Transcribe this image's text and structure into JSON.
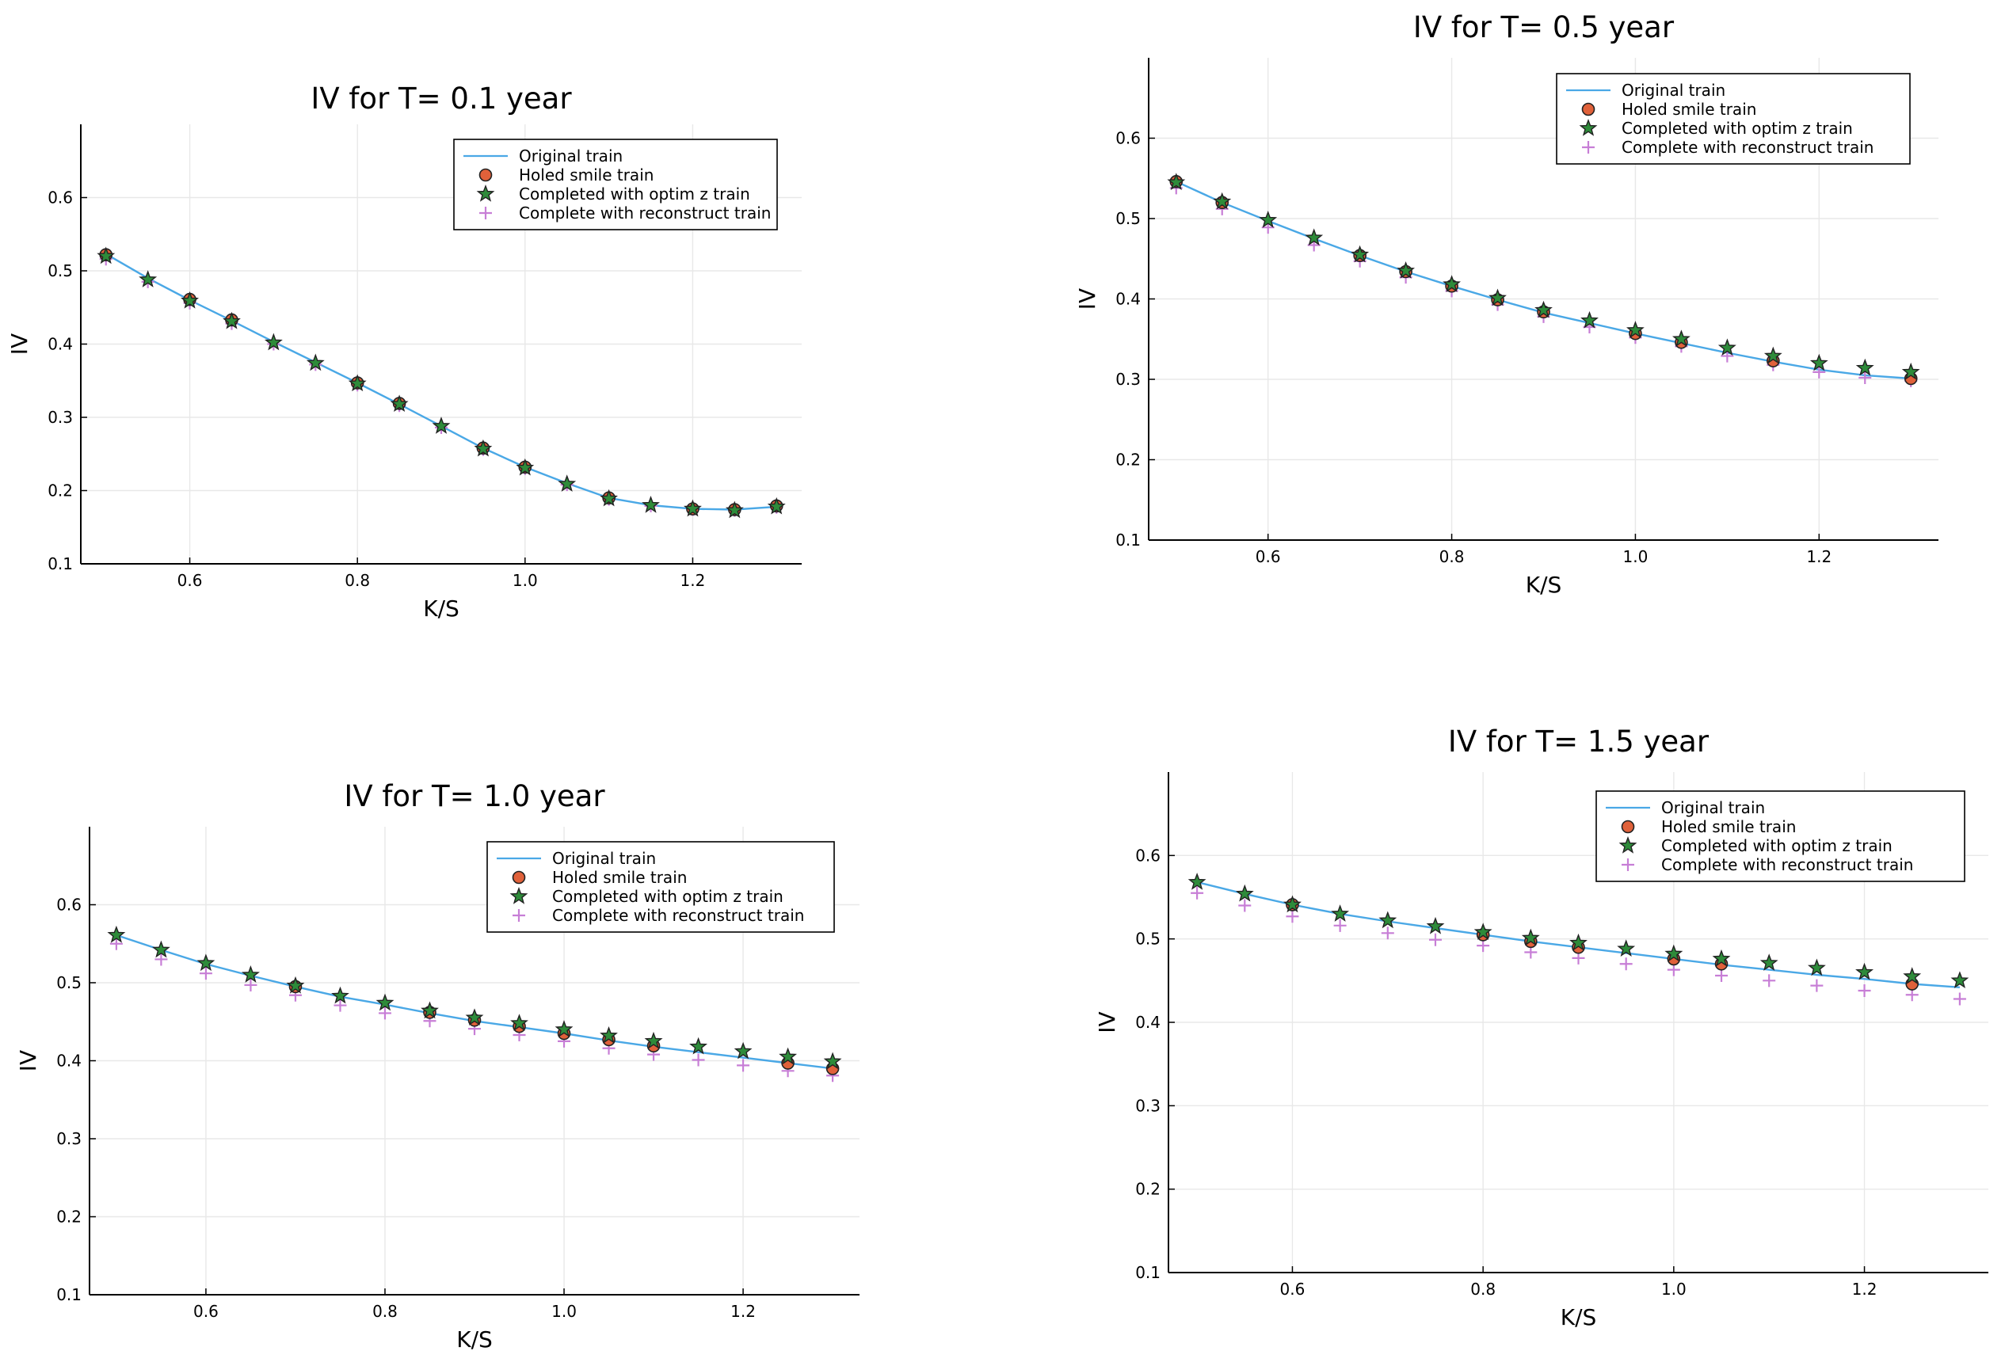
{
  "colors": {
    "line": "#4aa8e6",
    "holed": "#e0613a",
    "optim": "#2e8b3a",
    "recon": "#c77ed6"
  },
  "chart_data": [
    {
      "type": "line",
      "title": "IV for T= 0.1 year",
      "xlabel": "K/S",
      "ylabel": "IV",
      "xlim": [
        0.47,
        1.33
      ],
      "ylim": [
        0.1,
        0.7
      ],
      "xticks": [
        "0.6",
        "0.8",
        "1.0",
        "1.2"
      ],
      "yticks": [
        "0.1",
        "0.2",
        "0.3",
        "0.4",
        "0.5",
        "0.6"
      ],
      "legend": [
        "Original train",
        "Holed smile train",
        "Completed with optim z train",
        "Complete with reconstruct train"
      ],
      "x": [
        0.5,
        0.55,
        0.6,
        0.65,
        0.7,
        0.75,
        0.8,
        0.85,
        0.9,
        0.95,
        1.0,
        1.05,
        1.1,
        1.15,
        1.2,
        1.25,
        1.3
      ],
      "series": [
        {
          "name": "Original train",
          "values": [
            0.523,
            0.49,
            0.46,
            0.432,
            0.403,
            0.375,
            0.347,
            0.318,
            0.288,
            0.258,
            0.232,
            0.21,
            0.19,
            0.18,
            0.175,
            0.174,
            0.178
          ]
        },
        {
          "name": "Holed smile train",
          "x": [
            0.5,
            0.6,
            0.65,
            0.8,
            0.85,
            0.95,
            1.0,
            1.1,
            1.2,
            1.25,
            1.3
          ],
          "values": [
            0.522,
            0.461,
            0.433,
            0.347,
            0.319,
            0.258,
            0.232,
            0.19,
            0.175,
            0.174,
            0.179
          ]
        },
        {
          "name": "Completed with optim z train",
          "values": [
            0.52,
            0.488,
            0.459,
            0.431,
            0.402,
            0.374,
            0.346,
            0.318,
            0.288,
            0.257,
            0.231,
            0.209,
            0.189,
            0.18,
            0.175,
            0.173,
            0.178
          ]
        },
        {
          "name": "Complete with reconstruct train",
          "values": [
            0.516,
            0.485,
            0.456,
            0.428,
            0.4,
            0.372,
            0.344,
            0.316,
            0.286,
            0.256,
            0.23,
            0.208,
            0.188,
            0.179,
            0.174,
            0.173,
            0.177
          ]
        }
      ]
    },
    {
      "type": "line",
      "title": "IV for T= 0.5 year",
      "xlabel": "K/S",
      "ylabel": "IV",
      "xlim": [
        0.47,
        1.33
      ],
      "ylim": [
        0.1,
        0.7
      ],
      "xticks": [
        "0.6",
        "0.8",
        "1.0",
        "1.2"
      ],
      "yticks": [
        "0.1",
        "0.2",
        "0.3",
        "0.4",
        "0.5",
        "0.6"
      ],
      "legend": [
        "Original train",
        "Holed smile train",
        "Completed with optim z train",
        "Complete with reconstruct train"
      ],
      "x": [
        0.5,
        0.55,
        0.6,
        0.65,
        0.7,
        0.75,
        0.8,
        0.85,
        0.9,
        0.95,
        1.0,
        1.05,
        1.1,
        1.15,
        1.2,
        1.25,
        1.3
      ],
      "series": [
        {
          "name": "Original train",
          "values": [
            0.546,
            0.52,
            0.497,
            0.475,
            0.454,
            0.434,
            0.416,
            0.399,
            0.383,
            0.37,
            0.357,
            0.345,
            0.333,
            0.322,
            0.312,
            0.305,
            0.301
          ]
        },
        {
          "name": "Holed smile train",
          "x": [
            0.5,
            0.55,
            0.7,
            0.75,
            0.8,
            0.85,
            0.9,
            1.0,
            1.05,
            1.15,
            1.3
          ],
          "values": [
            0.546,
            0.52,
            0.454,
            0.434,
            0.416,
            0.399,
            0.384,
            0.357,
            0.346,
            0.323,
            0.301
          ]
        },
        {
          "name": "Completed with optim z train",
          "values": [
            0.545,
            0.521,
            0.498,
            0.476,
            0.455,
            0.435,
            0.418,
            0.401,
            0.386,
            0.373,
            0.361,
            0.35,
            0.339,
            0.329,
            0.32,
            0.314,
            0.309
          ]
        },
        {
          "name": "Complete with reconstruct train",
          "values": [
            0.538,
            0.512,
            0.489,
            0.467,
            0.447,
            0.427,
            0.41,
            0.393,
            0.378,
            0.365,
            0.352,
            0.341,
            0.329,
            0.318,
            0.309,
            0.302,
            0.298
          ]
        }
      ]
    },
    {
      "type": "line",
      "title": "IV for T= 1.0 year",
      "xlabel": "K/S",
      "ylabel": "IV",
      "xlim": [
        0.47,
        1.33
      ],
      "ylim": [
        0.1,
        0.7
      ],
      "xticks": [
        "0.6",
        "0.8",
        "1.0",
        "1.2"
      ],
      "yticks": [
        "0.1",
        "0.2",
        "0.3",
        "0.4",
        "0.5",
        "0.6"
      ],
      "legend": [
        "Original train",
        "Holed smile train",
        "Completed with optim z train",
        "Complete with reconstruct train"
      ],
      "x": [
        0.5,
        0.55,
        0.6,
        0.65,
        0.7,
        0.75,
        0.8,
        0.85,
        0.9,
        0.95,
        1.0,
        1.05,
        1.1,
        1.15,
        1.2,
        1.25,
        1.3
      ],
      "series": [
        {
          "name": "Original train",
          "values": [
            0.561,
            0.542,
            0.524,
            0.509,
            0.495,
            0.482,
            0.472,
            0.461,
            0.451,
            0.443,
            0.435,
            0.426,
            0.418,
            0.411,
            0.404,
            0.397,
            0.39
          ]
        },
        {
          "name": "Holed smile train",
          "x": [
            0.7,
            0.85,
            0.9,
            0.95,
            1.0,
            1.05,
            1.1,
            1.25,
            1.3
          ],
          "values": [
            0.495,
            0.462,
            0.452,
            0.444,
            0.435,
            0.427,
            0.419,
            0.397,
            0.39
          ]
        },
        {
          "name": "Completed with optim z train",
          "values": [
            0.561,
            0.542,
            0.525,
            0.51,
            0.496,
            0.483,
            0.474,
            0.464,
            0.455,
            0.448,
            0.44,
            0.432,
            0.425,
            0.418,
            0.412,
            0.405,
            0.399
          ]
        },
        {
          "name": "Complete with reconstruct train",
          "values": [
            0.55,
            0.53,
            0.512,
            0.497,
            0.484,
            0.471,
            0.461,
            0.451,
            0.441,
            0.433,
            0.425,
            0.416,
            0.408,
            0.401,
            0.394,
            0.387,
            0.381
          ]
        }
      ]
    },
    {
      "type": "line",
      "title": "IV for T= 1.5 year",
      "xlabel": "K/S",
      "ylabel": "IV",
      "xlim": [
        0.47,
        1.33
      ],
      "ylim": [
        0.1,
        0.7
      ],
      "xticks": [
        "0.6",
        "0.8",
        "1.0",
        "1.2"
      ],
      "yticks": [
        "0.1",
        "0.2",
        "0.3",
        "0.4",
        "0.5",
        "0.6"
      ],
      "legend": [
        "Original train",
        "Holed smile train",
        "Completed with optim z train",
        "Complete with reconstruct train"
      ],
      "x": [
        0.5,
        0.55,
        0.6,
        0.65,
        0.7,
        0.75,
        0.8,
        0.85,
        0.9,
        0.95,
        1.0,
        1.05,
        1.1,
        1.15,
        1.2,
        1.25,
        1.3
      ],
      "series": [
        {
          "name": "Original train",
          "values": [
            0.568,
            0.554,
            0.541,
            0.53,
            0.521,
            0.513,
            0.505,
            0.497,
            0.49,
            0.483,
            0.476,
            0.469,
            0.463,
            0.457,
            0.452,
            0.446,
            0.442
          ]
        },
        {
          "name": "Holed smile train",
          "x": [
            0.6,
            0.8,
            0.85,
            0.9,
            1.0,
            1.05,
            1.25
          ],
          "values": [
            0.541,
            0.505,
            0.497,
            0.49,
            0.476,
            0.47,
            0.446
          ]
        },
        {
          "name": "Completed with optim z train",
          "values": [
            0.568,
            0.554,
            0.541,
            0.53,
            0.522,
            0.515,
            0.508,
            0.501,
            0.495,
            0.488,
            0.482,
            0.476,
            0.471,
            0.465,
            0.46,
            0.455,
            0.45
          ]
        },
        {
          "name": "Complete with reconstruct train",
          "values": [
            0.555,
            0.54,
            0.527,
            0.516,
            0.507,
            0.499,
            0.492,
            0.484,
            0.477,
            0.47,
            0.463,
            0.456,
            0.45,
            0.444,
            0.438,
            0.433,
            0.428
          ]
        }
      ]
    }
  ]
}
